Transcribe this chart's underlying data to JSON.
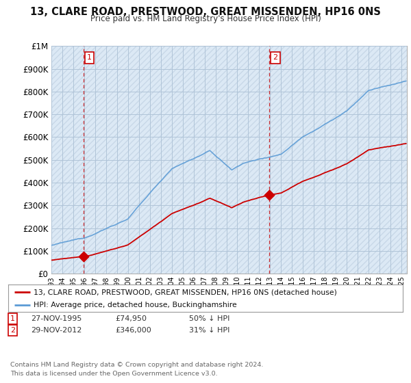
{
  "title": "13, CLARE ROAD, PRESTWOOD, GREAT MISSENDEN, HP16 0NS",
  "subtitle": "Price paid vs. HM Land Registry's House Price Index (HPI)",
  "sale1_year": 1995.917,
  "sale1_price": 74950,
  "sale2_year": 2012.917,
  "sale2_price": 346000,
  "legend_line1": "13, CLARE ROAD, PRESTWOOD, GREAT MISSENDEN, HP16 0NS (detached house)",
  "legend_line2": "HPI: Average price, detached house, Buckinghamshire",
  "note1_num": "1",
  "note1_date": "27-NOV-1995",
  "note1_price": "£74,950",
  "note1_hpi": "50% ↓ HPI",
  "note2_num": "2",
  "note2_date": "29-NOV-2012",
  "note2_price": "£346,000",
  "note2_hpi": "31% ↓ HPI",
  "footer": "Contains HM Land Registry data © Crown copyright and database right 2024.\nThis data is licensed under the Open Government Licence v3.0.",
  "sale_line_color": "#cc0000",
  "hpi_line_color": "#5b9bd5",
  "sale_dot_color": "#cc0000",
  "vline_color": "#cc0000",
  "plot_bg": "#dce9f5",
  "bg_color": "#ffffff",
  "grid_color": "#b0c4d8",
  "hatch_color": "#c8d8e8",
  "ylim_min": 0,
  "ylim_max": 1000000,
  "xmin": 1993,
  "xmax": 2025.5
}
